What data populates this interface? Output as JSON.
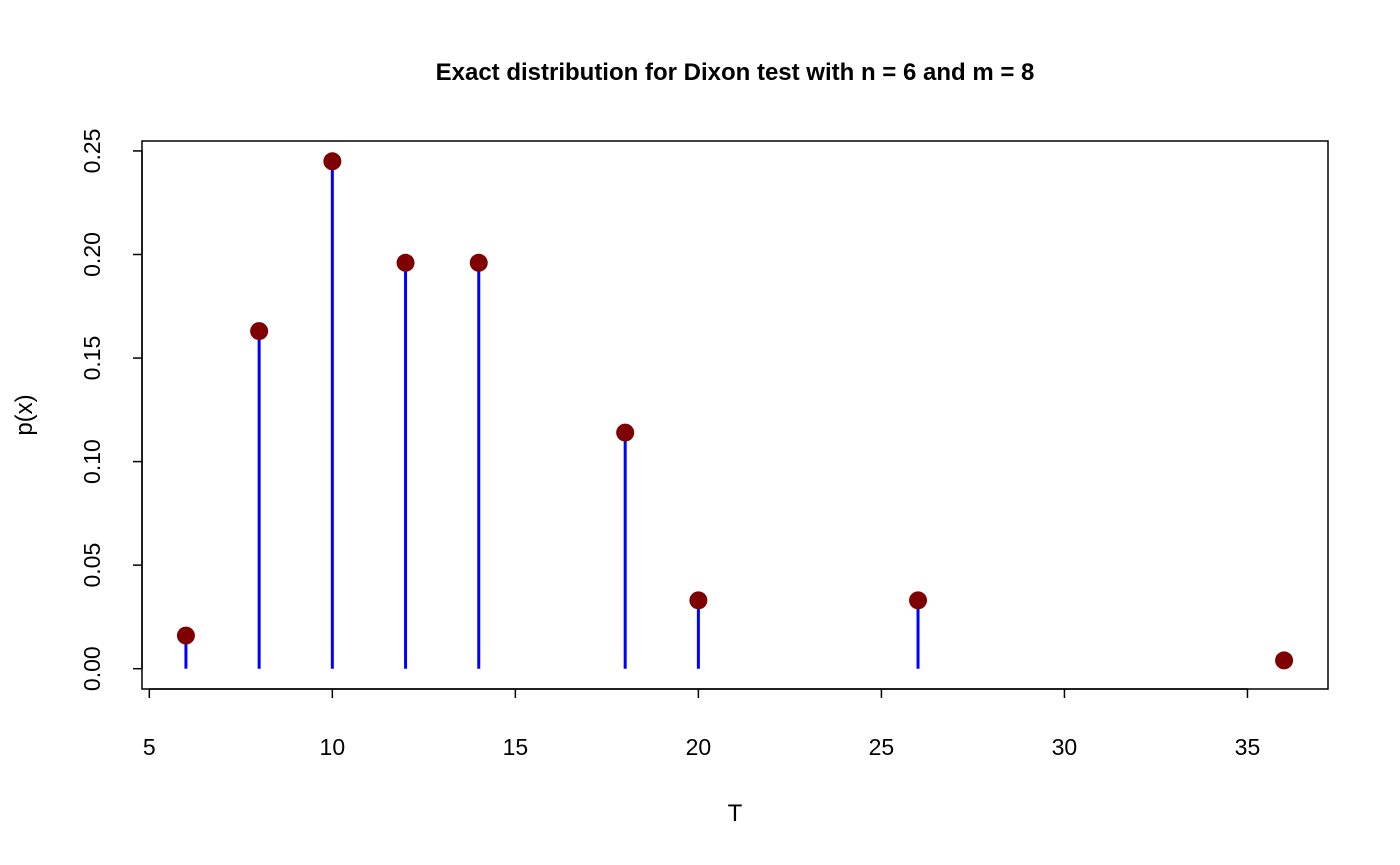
{
  "chart_data": {
    "type": "scatter",
    "title": "Exact distribution for Dixon test with n = 6 and m = 8",
    "xlabel": "T",
    "ylabel": "p(x)",
    "x": [
      6,
      8,
      10,
      12,
      14,
      18,
      20,
      26,
      36
    ],
    "y": [
      0.016,
      0.163,
      0.245,
      0.196,
      0.196,
      0.114,
      0.033,
      0.033,
      0.004
    ],
    "xlim": [
      4.8,
      37.2
    ],
    "ylim": [
      -0.0098,
      0.2548
    ],
    "xticks": [
      5,
      10,
      15,
      20,
      25,
      30,
      35
    ],
    "yticks": [
      0.0,
      0.05,
      0.1,
      0.15,
      0.2,
      0.25
    ],
    "ytick_labels": [
      "0.00",
      "0.05",
      "0.10",
      "0.15",
      "0.20",
      "0.25"
    ],
    "grid": false,
    "line_color": "#0000ff",
    "point_color": "#7f0000"
  }
}
